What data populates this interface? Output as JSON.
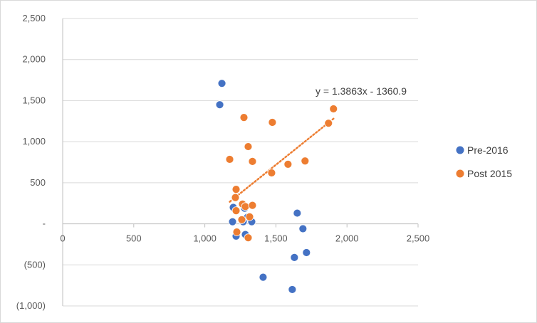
{
  "chart_data": {
    "type": "scatter",
    "title": "",
    "xlabel": "",
    "ylabel": "",
    "xlim": [
      0,
      2500
    ],
    "ylim": [
      -1000,
      2500
    ],
    "x_ticks": [
      "0",
      "500",
      "1,000",
      "1,500",
      "2,000",
      "2,500"
    ],
    "x_tick_values": [
      0,
      500,
      1000,
      1500,
      2000,
      2500
    ],
    "y_ticks": [
      "2,500",
      "2,000",
      "1,500",
      "1,000",
      "500",
      "-",
      "(500)",
      "(1,000)"
    ],
    "y_tick_values": [
      2500,
      2000,
      1500,
      1000,
      500,
      0,
      -500,
      -1000
    ],
    "grid": "horizontal",
    "legend_position": "right",
    "series": [
      {
        "name": "Pre-2016",
        "color": "#4472C4",
        "points": [
          {
            "x": 1120,
            "y": 1710
          },
          {
            "x": 1105,
            "y": 1450
          },
          {
            "x": 1200,
            "y": 200
          },
          {
            "x": 1280,
            "y": 190
          },
          {
            "x": 1300,
            "y": 80
          },
          {
            "x": 1195,
            "y": 25
          },
          {
            "x": 1270,
            "y": 25
          },
          {
            "x": 1330,
            "y": 25
          },
          {
            "x": 1285,
            "y": -130
          },
          {
            "x": 1220,
            "y": -150
          },
          {
            "x": 1650,
            "y": 130
          },
          {
            "x": 1690,
            "y": -60
          },
          {
            "x": 1715,
            "y": -350
          },
          {
            "x": 1630,
            "y": -410
          },
          {
            "x": 1410,
            "y": -650
          },
          {
            "x": 1615,
            "y": -800
          }
        ]
      },
      {
        "name": "Post 2015",
        "color": "#ED7D31",
        "points": [
          {
            "x": 1905,
            "y": 1400
          },
          {
            "x": 1870,
            "y": 1225
          },
          {
            "x": 1275,
            "y": 1295
          },
          {
            "x": 1475,
            "y": 1235
          },
          {
            "x": 1305,
            "y": 940
          },
          {
            "x": 1175,
            "y": 785
          },
          {
            "x": 1335,
            "y": 760
          },
          {
            "x": 1585,
            "y": 725
          },
          {
            "x": 1705,
            "y": 765
          },
          {
            "x": 1470,
            "y": 620
          },
          {
            "x": 1220,
            "y": 420
          },
          {
            "x": 1215,
            "y": 320
          },
          {
            "x": 1265,
            "y": 240
          },
          {
            "x": 1285,
            "y": 210
          },
          {
            "x": 1335,
            "y": 225
          },
          {
            "x": 1220,
            "y": 160
          },
          {
            "x": 1315,
            "y": 85
          },
          {
            "x": 1260,
            "y": 50
          },
          {
            "x": 1225,
            "y": -100
          },
          {
            "x": 1305,
            "y": -170
          }
        ]
      }
    ],
    "trendline": {
      "series": "Post 2015",
      "style": "dotted",
      "color": "#ED7D31",
      "slope": 1.3863,
      "intercept": -1360.9,
      "x_range": [
        1175,
        1905
      ],
      "equation_label": "y = 1.3863x - 1360.9"
    }
  }
}
